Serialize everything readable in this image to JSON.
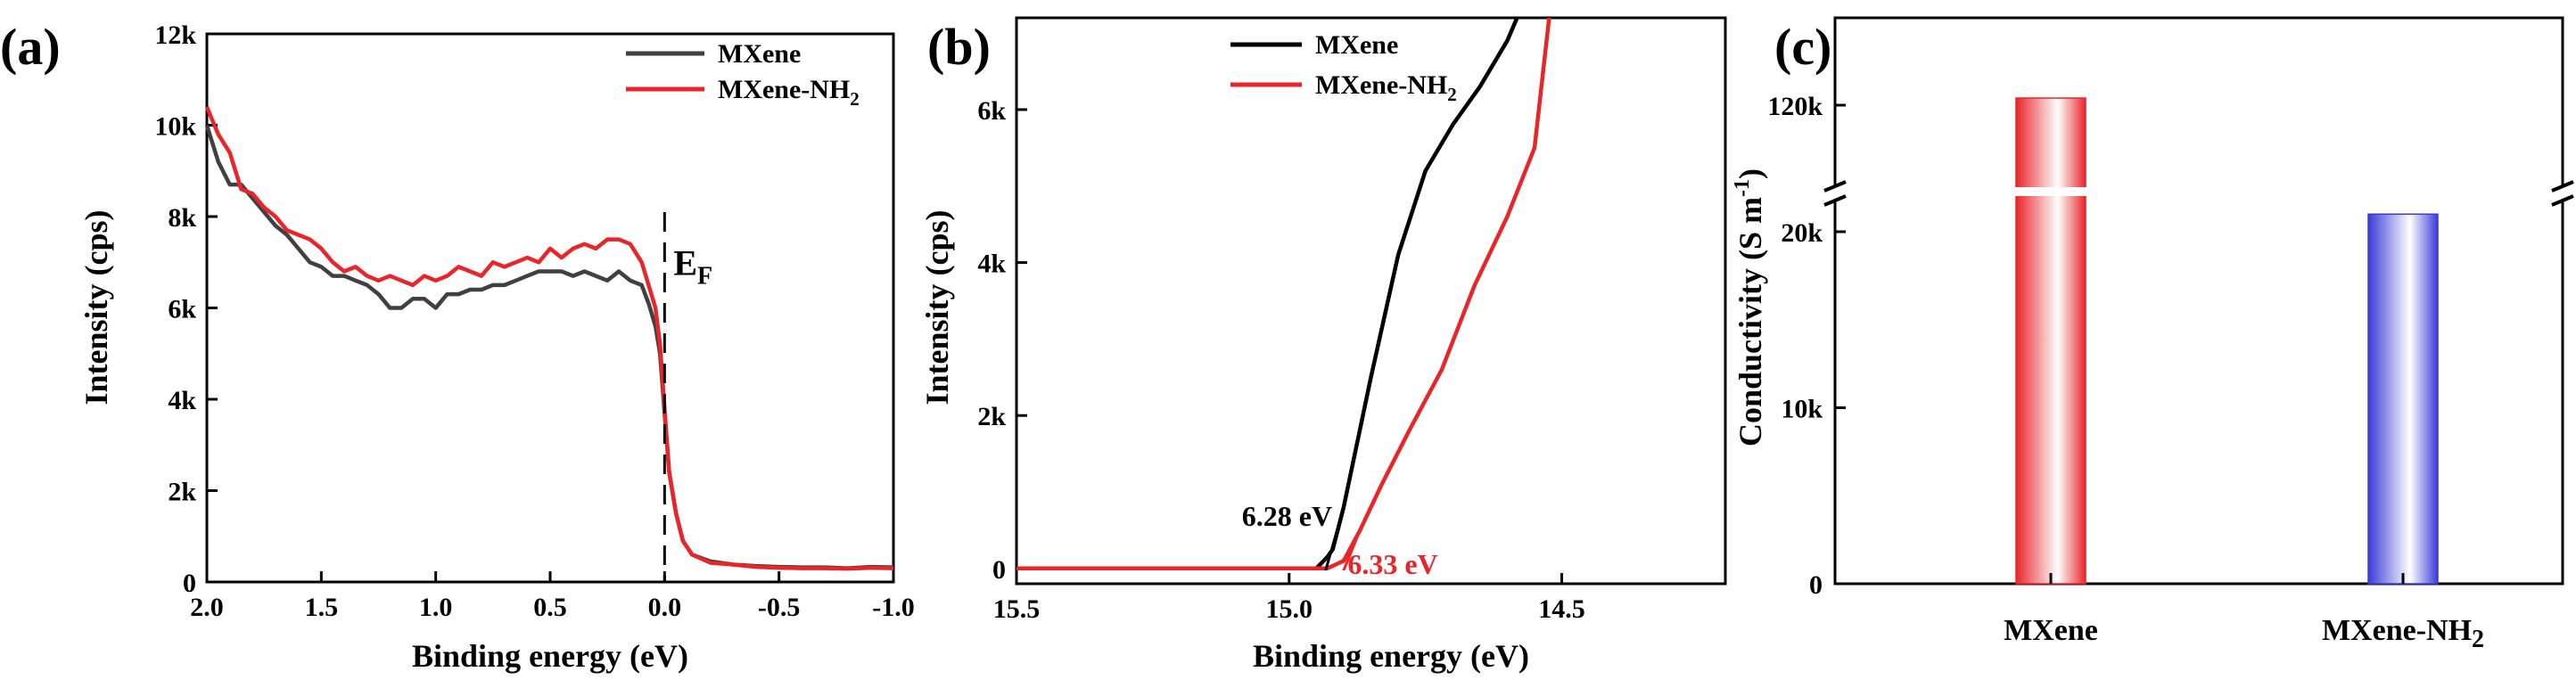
{
  "panels": [
    {
      "id": "a",
      "label": "(a)"
    },
    {
      "id": "b",
      "label": "(b)"
    },
    {
      "id": "c",
      "label": "(c)"
    }
  ],
  "chart_data": [
    {
      "panel": "(a)",
      "type": "line",
      "xlabel": "Binding energy (eV)",
      "ylabel": "Intensity (cps)",
      "xlim": [
        2.0,
        -1.0
      ],
      "ylim": [
        0,
        12000
      ],
      "xticks": [
        "2.0",
        "1.5",
        "1.0",
        "0.5",
        "0.0",
        "-0.5",
        "-1.0"
      ],
      "yticks": [
        "0",
        "2k",
        "4k",
        "6k",
        "8k",
        "10k",
        "12k"
      ],
      "legend_position": "top-right",
      "annotations": [
        {
          "text": "E",
          "sub": "F",
          "x": 0.0,
          "y": 7800
        }
      ],
      "fermi_line_x": 0.0,
      "series": [
        {
          "name": "MXene",
          "name_sub": "",
          "color": "#404040",
          "x": [
            2.0,
            1.95,
            1.9,
            1.85,
            1.8,
            1.75,
            1.7,
            1.65,
            1.6,
            1.55,
            1.5,
            1.45,
            1.4,
            1.35,
            1.3,
            1.25,
            1.2,
            1.15,
            1.1,
            1.05,
            1.0,
            0.95,
            0.9,
            0.85,
            0.8,
            0.75,
            0.7,
            0.65,
            0.6,
            0.55,
            0.5,
            0.45,
            0.4,
            0.35,
            0.3,
            0.25,
            0.2,
            0.15,
            0.1,
            0.07,
            0.04,
            0.02,
            0.0,
            -0.02,
            -0.05,
            -0.08,
            -0.12,
            -0.2,
            -0.3,
            -0.4,
            -0.5,
            -0.6,
            -0.7,
            -0.8,
            -0.9,
            -1.0
          ],
          "y": [
            10000,
            9200,
            8700,
            8700,
            8400,
            8100,
            7800,
            7600,
            7300,
            7000,
            6900,
            6700,
            6700,
            6600,
            6500,
            6300,
            6000,
            6000,
            6200,
            6200,
            6000,
            6300,
            6300,
            6400,
            6400,
            6500,
            6500,
            6600,
            6700,
            6800,
            6800,
            6800,
            6700,
            6800,
            6700,
            6600,
            6800,
            6600,
            6500,
            6100,
            5600,
            5000,
            3700,
            2400,
            1500,
            900,
            600,
            450,
            380,
            350,
            330,
            320,
            320,
            300,
            330,
            320
          ]
        },
        {
          "name": "MXene-NH",
          "name_sub": "2",
          "color": "#e8262a",
          "x": [
            2.0,
            1.95,
            1.9,
            1.85,
            1.8,
            1.75,
            1.7,
            1.65,
            1.6,
            1.55,
            1.5,
            1.45,
            1.4,
            1.35,
            1.3,
            1.25,
            1.2,
            1.15,
            1.1,
            1.05,
            1.0,
            0.95,
            0.9,
            0.85,
            0.8,
            0.75,
            0.7,
            0.65,
            0.6,
            0.55,
            0.5,
            0.45,
            0.4,
            0.35,
            0.3,
            0.25,
            0.2,
            0.15,
            0.1,
            0.07,
            0.04,
            0.02,
            0.0,
            -0.02,
            -0.05,
            -0.08,
            -0.12,
            -0.2,
            -0.3,
            -0.4,
            -0.5,
            -0.6,
            -0.7,
            -0.8,
            -0.9,
            -1.0
          ],
          "y": [
            10400,
            9800,
            9400,
            8600,
            8500,
            8200,
            8000,
            7700,
            7600,
            7500,
            7300,
            7000,
            6800,
            6900,
            6700,
            6600,
            6700,
            6600,
            6500,
            6700,
            6600,
            6700,
            6900,
            6800,
            6700,
            7000,
            6900,
            7000,
            7100,
            7000,
            7300,
            7100,
            7300,
            7400,
            7300,
            7500,
            7500,
            7400,
            7000,
            6500,
            6000,
            5200,
            3800,
            2400,
            1500,
            900,
            600,
            420,
            380,
            330,
            310,
            300,
            300,
            290,
            310,
            300
          ]
        }
      ]
    },
    {
      "panel": "(b)",
      "type": "line",
      "xlabel": "Binding energy (eV)",
      "ylabel": "Intensity (cps)",
      "xlim": [
        15.5,
        14.2
      ],
      "ylim": [
        -200,
        7200
      ],
      "xticks": [
        "15.5",
        "15.0",
        "14.5"
      ],
      "yticks": [
        "0",
        "2k",
        "4k",
        "6k"
      ],
      "legend_position": "top",
      "annotations": [
        {
          "text": "6.28 eV",
          "color": "#000000",
          "x": 14.97,
          "y": 560
        },
        {
          "text": "6.33 eV",
          "color": "#e8262a",
          "x": 14.86,
          "y": 70
        }
      ],
      "series": [
        {
          "name": "MXene",
          "name_sub": "",
          "color": "#000000",
          "x": [
            15.5,
            15.3,
            15.1,
            15.0,
            14.95,
            14.93,
            14.92,
            14.9,
            14.85,
            14.8,
            14.75,
            14.7,
            14.65,
            14.6,
            14.57
          ],
          "y": [
            0,
            0,
            0,
            0,
            0,
            150,
            250,
            800,
            2500,
            4100,
            5200,
            5800,
            6300,
            6900,
            7400
          ]
        },
        {
          "name": "MXene-NH",
          "name_sub": "2",
          "color": "#e8262a",
          "x": [
            15.5,
            15.3,
            15.1,
            15.0,
            14.93,
            14.9,
            14.87,
            14.83,
            14.78,
            14.72,
            14.66,
            14.6,
            14.55,
            14.52
          ],
          "y": [
            0,
            0,
            0,
            0,
            0,
            100,
            500,
            1100,
            1800,
            2600,
            3700,
            4600,
            5500,
            7400
          ]
        }
      ],
      "tangent_lines": [
        {
          "color": "#000000",
          "x": [
            14.94,
            14.9
          ],
          "y": [
            -200,
            800
          ]
        },
        {
          "color": "#e8262a",
          "x": [
            14.91,
            14.87
          ],
          "y": [
            -200,
            500
          ]
        }
      ]
    },
    {
      "panel": "(c)",
      "type": "bar",
      "xlabel": "",
      "ylabel": "Conductivity (S m",
      "ylabel_sup": "-1",
      "ylabel_close": ")",
      "broken_axis": true,
      "yticks": [
        "0",
        "10k",
        "20k",
        "120k"
      ],
      "categories": [
        {
          "name": "MXene",
          "sub": ""
        },
        {
          "name": "MXene-NH",
          "sub": "2"
        }
      ],
      "values": [
        122000,
        21000
      ],
      "colors": [
        "#e8262a",
        "#3b3bd9"
      ]
    }
  ]
}
